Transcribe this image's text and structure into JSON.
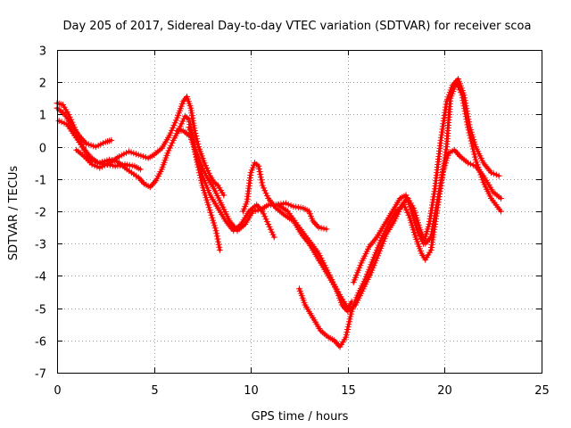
{
  "chart_data": {
    "type": "scatter",
    "title": "Day 205 of 2017, Sidereal Day-to-day VTEC variation (SDTVAR) for receiver scoa",
    "xlabel": "GPS time / hours",
    "ylabel": "SDTVAR / TECUs",
    "xlim": [
      0,
      25
    ],
    "ylim": [
      -7,
      3
    ],
    "xticks": [
      0,
      5,
      10,
      15,
      20,
      25
    ],
    "yticks": [
      -7,
      -6,
      -5,
      -4,
      -3,
      -2,
      -1,
      0,
      1,
      2,
      3
    ],
    "marker": "plus",
    "color": "#ff0000",
    "grid": true,
    "series": [
      {
        "name": "trace-a",
        "points": [
          [
            0.0,
            1.2
          ],
          [
            0.4,
            1.0
          ],
          [
            0.8,
            0.6
          ],
          [
            1.2,
            0.3
          ],
          [
            1.5,
            0.1
          ],
          [
            2.0,
            0.0
          ],
          [
            2.5,
            0.15
          ],
          [
            2.8,
            0.2
          ]
        ]
      },
      {
        "name": "trace-b",
        "points": [
          [
            0.1,
            0.8
          ],
          [
            0.5,
            0.7
          ],
          [
            0.9,
            0.35
          ],
          [
            1.3,
            0.0
          ],
          [
            1.7,
            -0.3
          ],
          [
            2.1,
            -0.5
          ],
          [
            2.6,
            -0.55
          ],
          [
            3.0,
            -0.6
          ],
          [
            3.5,
            -0.55
          ],
          [
            4.0,
            -0.6
          ],
          [
            4.3,
            -0.7
          ]
        ]
      },
      {
        "name": "trace-c",
        "points": [
          [
            1.0,
            -0.1
          ],
          [
            1.4,
            -0.3
          ],
          [
            1.8,
            -0.55
          ],
          [
            2.2,
            -0.65
          ],
          [
            2.7,
            -0.5
          ],
          [
            3.2,
            -0.3
          ],
          [
            3.7,
            -0.15
          ],
          [
            4.2,
            -0.25
          ],
          [
            4.7,
            -0.35
          ],
          [
            5.0,
            -0.25
          ],
          [
            5.4,
            -0.05
          ],
          [
            5.8,
            0.35
          ],
          [
            6.2,
            0.9
          ],
          [
            6.5,
            1.4
          ],
          [
            6.7,
            1.55
          ],
          [
            6.9,
            1.2
          ],
          [
            7.1,
            0.5
          ],
          [
            7.3,
            0.0
          ],
          [
            7.6,
            -0.5
          ],
          [
            7.9,
            -0.9
          ],
          [
            8.1,
            -1.1
          ],
          [
            8.3,
            -1.2
          ],
          [
            8.6,
            -1.5
          ]
        ]
      },
      {
        "name": "trace-d",
        "points": [
          [
            0.0,
            1.35
          ],
          [
            0.3,
            1.3
          ],
          [
            0.6,
            1.0
          ],
          [
            0.9,
            0.6
          ],
          [
            1.1,
            0.3
          ],
          [
            1.4,
            -0.1
          ],
          [
            1.7,
            -0.4
          ],
          [
            2.2,
            -0.5
          ],
          [
            2.7,
            -0.4
          ],
          [
            3.1,
            -0.45
          ],
          [
            3.6,
            -0.7
          ],
          [
            4.2,
            -0.95
          ],
          [
            4.5,
            -1.15
          ],
          [
            4.8,
            -1.25
          ],
          [
            5.1,
            -1.05
          ],
          [
            5.4,
            -0.7
          ],
          [
            5.7,
            -0.2
          ],
          [
            6.0,
            0.2
          ],
          [
            6.3,
            0.55
          ],
          [
            6.6,
            0.95
          ],
          [
            6.8,
            0.85
          ],
          [
            7.0,
            0.3
          ],
          [
            7.2,
            -0.4
          ],
          [
            7.5,
            -1.2
          ],
          [
            7.8,
            -1.8
          ],
          [
            8.0,
            -2.2
          ],
          [
            8.2,
            -2.6
          ],
          [
            8.4,
            -3.2
          ]
        ]
      },
      {
        "name": "trace-e",
        "points": [
          [
            6.2,
            0.5
          ],
          [
            6.5,
            0.5
          ],
          [
            6.9,
            0.3
          ],
          [
            7.2,
            -0.3
          ],
          [
            7.5,
            -0.9
          ],
          [
            7.9,
            -1.5
          ],
          [
            8.3,
            -1.9
          ],
          [
            8.7,
            -2.3
          ],
          [
            9.1,
            -2.6
          ],
          [
            9.5,
            -2.4
          ],
          [
            9.9,
            -2.0
          ],
          [
            10.3,
            -1.8
          ],
          [
            10.6,
            -2.0
          ],
          [
            10.9,
            -2.4
          ],
          [
            11.2,
            -2.8
          ]
        ]
      },
      {
        "name": "trace-f",
        "points": [
          [
            6.8,
            0.6
          ],
          [
            7.0,
            0.2
          ],
          [
            7.3,
            -0.4
          ],
          [
            7.7,
            -0.9
          ],
          [
            8.1,
            -1.3
          ],
          [
            8.5,
            -1.8
          ],
          [
            8.9,
            -2.3
          ],
          [
            9.3,
            -2.6
          ],
          [
            9.7,
            -2.4
          ],
          [
            10.1,
            -2.0
          ],
          [
            10.5,
            -1.95
          ],
          [
            10.9,
            -1.8
          ],
          [
            11.3,
            -1.8
          ],
          [
            11.8,
            -1.75
          ],
          [
            12.2,
            -1.85
          ],
          [
            12.7,
            -1.9
          ],
          [
            13.0,
            -2.0
          ],
          [
            13.2,
            -2.3
          ],
          [
            13.5,
            -2.5
          ],
          [
            13.9,
            -2.55
          ]
        ]
      },
      {
        "name": "trace-g",
        "points": [
          [
            9.6,
            -2.0
          ],
          [
            9.8,
            -1.7
          ],
          [
            10.0,
            -0.8
          ],
          [
            10.2,
            -0.5
          ],
          [
            10.4,
            -0.6
          ],
          [
            10.6,
            -1.2
          ],
          [
            10.9,
            -1.6
          ],
          [
            11.3,
            -1.9
          ],
          [
            11.7,
            -2.1
          ],
          [
            12.2,
            -2.3
          ],
          [
            12.6,
            -2.7
          ],
          [
            13.0,
            -3.0
          ],
          [
            13.4,
            -3.4
          ],
          [
            13.8,
            -3.8
          ],
          [
            14.2,
            -4.2
          ],
          [
            14.5,
            -4.5
          ],
          [
            14.8,
            -4.8
          ],
          [
            15.0,
            -5.0
          ],
          [
            15.2,
            -4.8
          ]
        ]
      },
      {
        "name": "trace-h",
        "points": [
          [
            11.4,
            -1.8
          ],
          [
            11.9,
            -2.0
          ],
          [
            12.5,
            -2.5
          ],
          [
            13.0,
            -2.9
          ],
          [
            13.5,
            -3.3
          ],
          [
            14.0,
            -3.9
          ],
          [
            14.4,
            -4.4
          ],
          [
            14.7,
            -4.9
          ],
          [
            15.0,
            -5.1
          ],
          [
            15.4,
            -4.9
          ],
          [
            15.8,
            -4.4
          ],
          [
            16.2,
            -3.9
          ],
          [
            16.6,
            -3.3
          ],
          [
            17.0,
            -2.7
          ],
          [
            17.4,
            -2.3
          ],
          [
            17.8,
            -1.8
          ],
          [
            18.1,
            -1.6
          ],
          [
            18.4,
            -1.9
          ],
          [
            18.7,
            -2.5
          ],
          [
            19.0,
            -3.0
          ],
          [
            19.3,
            -2.8
          ],
          [
            19.6,
            -1.8
          ],
          [
            19.9,
            -0.8
          ],
          [
            20.2,
            -0.2
          ],
          [
            20.5,
            -0.1
          ],
          [
            20.8,
            -0.3
          ],
          [
            21.2,
            -0.5
          ],
          [
            21.6,
            -0.6
          ],
          [
            22.0,
            -0.9
          ],
          [
            22.5,
            -1.4
          ],
          [
            22.9,
            -1.6
          ]
        ]
      },
      {
        "name": "trace-i",
        "points": [
          [
            12.5,
            -4.4
          ],
          [
            12.8,
            -4.9
          ],
          [
            13.2,
            -5.3
          ],
          [
            13.6,
            -5.7
          ],
          [
            14.0,
            -5.9
          ],
          [
            14.3,
            -6.0
          ],
          [
            14.6,
            -6.2
          ],
          [
            14.9,
            -5.9
          ],
          [
            15.2,
            -5.1
          ],
          [
            15.5,
            -4.6
          ],
          [
            15.9,
            -4.1
          ],
          [
            16.3,
            -3.5
          ],
          [
            16.7,
            -2.9
          ],
          [
            17.1,
            -2.4
          ],
          [
            17.5,
            -2.0
          ],
          [
            17.9,
            -1.8
          ],
          [
            18.2,
            -2.2
          ],
          [
            18.5,
            -2.8
          ],
          [
            18.8,
            -3.3
          ],
          [
            19.0,
            -3.5
          ],
          [
            19.3,
            -3.2
          ],
          [
            19.5,
            -2.4
          ],
          [
            19.8,
            -1.2
          ],
          [
            20.1,
            0.0
          ],
          [
            20.3,
            1.5
          ],
          [
            20.6,
            2.0
          ],
          [
            20.9,
            1.6
          ],
          [
            21.2,
            0.6
          ],
          [
            21.6,
            -0.4
          ],
          [
            22.0,
            -1.1
          ],
          [
            22.4,
            -1.6
          ],
          [
            22.9,
            -2.0
          ]
        ]
      },
      {
        "name": "trace-j",
        "points": [
          [
            15.3,
            -4.2
          ],
          [
            15.7,
            -3.6
          ],
          [
            16.1,
            -3.1
          ],
          [
            16.5,
            -2.8
          ],
          [
            16.9,
            -2.4
          ],
          [
            17.3,
            -2.0
          ],
          [
            17.7,
            -1.6
          ],
          [
            18.0,
            -1.5
          ],
          [
            18.3,
            -2.0
          ],
          [
            18.6,
            -2.6
          ],
          [
            18.9,
            -3.0
          ],
          [
            19.2,
            -2.4
          ],
          [
            19.5,
            -1.3
          ],
          [
            19.8,
            0.2
          ],
          [
            20.1,
            1.4
          ],
          [
            20.4,
            1.9
          ],
          [
            20.7,
            2.1
          ],
          [
            21.0,
            1.6
          ],
          [
            21.3,
            0.6
          ],
          [
            21.6,
            0.0
          ],
          [
            22.0,
            -0.5
          ],
          [
            22.4,
            -0.8
          ],
          [
            22.8,
            -0.9
          ]
        ]
      }
    ]
  }
}
